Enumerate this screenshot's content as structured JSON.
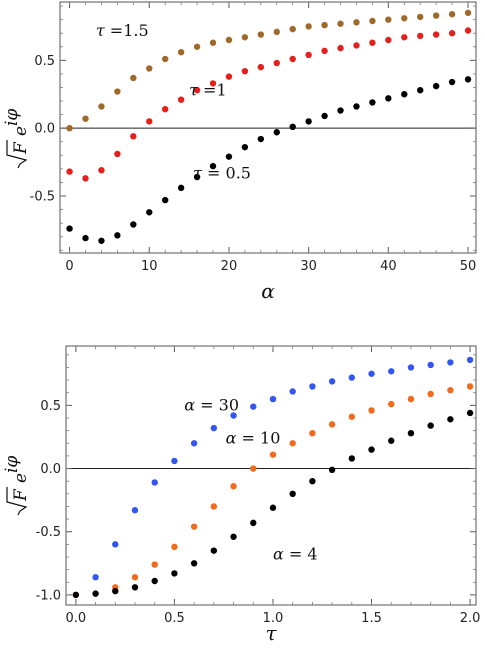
{
  "chart_data": [
    {
      "type": "scatter",
      "title": "",
      "xlabel": "α",
      "ylabel_main": "F",
      "ylabel_exp": "eiφ",
      "xlim": [
        -1.2,
        51
      ],
      "ylim": [
        -0.92,
        0.93
      ],
      "xticks": [
        0,
        10,
        20,
        30,
        40,
        50
      ],
      "xtick_labels": [
        "0",
        "10",
        "20",
        "30",
        "40",
        "50"
      ],
      "yticks": [
        -0.5,
        0.0,
        0.5
      ],
      "ytick_labels": [
        "-0.5",
        "0.0",
        "0.5"
      ],
      "zero_line": true,
      "grid": false,
      "series": [
        {
          "name": "τ = 1.5",
          "color": "#a0692a",
          "x": [
            0,
            2,
            4,
            6,
            8,
            10,
            12,
            14,
            16,
            18,
            20,
            22,
            24,
            26,
            28,
            30,
            32,
            34,
            36,
            38,
            40,
            42,
            44,
            46,
            48,
            50
          ],
          "y": [
            0.0,
            0.07,
            0.16,
            0.27,
            0.37,
            0.44,
            0.51,
            0.56,
            0.6,
            0.63,
            0.65,
            0.67,
            0.69,
            0.71,
            0.73,
            0.75,
            0.76,
            0.77,
            0.78,
            0.79,
            0.8,
            0.81,
            0.82,
            0.83,
            0.84,
            0.85
          ]
        },
        {
          "name": "τ = 1",
          "color": "#e3201b",
          "x": [
            0,
            2,
            4,
            6,
            8,
            10,
            12,
            14,
            16,
            18,
            20,
            22,
            24,
            26,
            28,
            30,
            32,
            34,
            36,
            38,
            40,
            42,
            44,
            46,
            48,
            50
          ],
          "y": [
            -0.32,
            -0.37,
            -0.31,
            -0.19,
            -0.06,
            0.05,
            0.14,
            0.21,
            0.28,
            0.33,
            0.38,
            0.42,
            0.45,
            0.48,
            0.51,
            0.54,
            0.57,
            0.59,
            0.61,
            0.63,
            0.65,
            0.67,
            0.68,
            0.69,
            0.7,
            0.72
          ]
        },
        {
          "name": "τ = 0.5",
          "color": "#000000",
          "x": [
            0,
            2,
            4,
            6,
            8,
            10,
            12,
            14,
            16,
            18,
            20,
            22,
            24,
            26,
            28,
            30,
            32,
            34,
            36,
            38,
            40,
            42,
            44,
            46,
            48,
            50
          ],
          "y": [
            -0.74,
            -0.81,
            -0.83,
            -0.79,
            -0.71,
            -0.62,
            -0.53,
            -0.44,
            -0.36,
            -0.28,
            -0.21,
            -0.14,
            -0.08,
            -0.03,
            0.01,
            0.05,
            0.09,
            0.13,
            0.16,
            0.19,
            0.22,
            0.25,
            0.28,
            0.31,
            0.34,
            0.36
          ]
        }
      ],
      "annotations": [
        {
          "greek": "τ",
          "rest": " =1.5",
          "x": 3.3,
          "y": 0.68
        },
        {
          "greek": "τ",
          "rest": " =1",
          "x": 15.0,
          "y": 0.24
        },
        {
          "greek": "τ",
          "rest": " = 0.5",
          "x": 15.5,
          "y": -0.37
        }
      ]
    },
    {
      "type": "scatter",
      "title": "",
      "xlabel": "τ",
      "ylabel_main": "F",
      "ylabel_exp": "eiφ",
      "xlim": [
        -0.05,
        2.03
      ],
      "ylim": [
        -1.08,
        0.97
      ],
      "xticks": [
        0.0,
        0.5,
        1.0,
        1.5,
        2.0
      ],
      "xtick_labels": [
        "0.0",
        "0.5",
        "1.0",
        "1.5",
        "2.0"
      ],
      "yticks": [
        -1.0,
        -0.5,
        0.0,
        0.5
      ],
      "ytick_labels": [
        "-1.0",
        "-0.5",
        "0.0",
        "0.5"
      ],
      "zero_line": true,
      "grid": false,
      "series": [
        {
          "name": "α = 30",
          "color": "#3355f0",
          "x": [
            0.0,
            0.1,
            0.2,
            0.3,
            0.4,
            0.5,
            0.6,
            0.7,
            0.8,
            0.9,
            1.0,
            1.1,
            1.2,
            1.3,
            1.4,
            1.5,
            1.6,
            1.7,
            1.8,
            1.9,
            2.0
          ],
          "y": [
            -1.0,
            -0.86,
            -0.6,
            -0.33,
            -0.11,
            0.06,
            0.2,
            0.32,
            0.42,
            0.49,
            0.55,
            0.61,
            0.65,
            0.69,
            0.72,
            0.75,
            0.77,
            0.8,
            0.82,
            0.84,
            0.86
          ]
        },
        {
          "name": "α = 10",
          "color": "#f26a1b",
          "x": [
            0.0,
            0.1,
            0.2,
            0.3,
            0.4,
            0.5,
            0.6,
            0.7,
            0.8,
            0.9,
            1.0,
            1.1,
            1.2,
            1.3,
            1.4,
            1.5,
            1.6,
            1.7,
            1.8,
            1.9,
            2.0
          ],
          "y": [
            -1.0,
            -0.99,
            -0.94,
            -0.86,
            -0.76,
            -0.62,
            -0.46,
            -0.3,
            -0.14,
            0.0,
            0.11,
            0.2,
            0.28,
            0.35,
            0.41,
            0.46,
            0.51,
            0.55,
            0.59,
            0.62,
            0.65
          ]
        },
        {
          "name": "α = 4",
          "color": "#000000",
          "x": [
            0.0,
            0.1,
            0.2,
            0.3,
            0.4,
            0.5,
            0.6,
            0.7,
            0.8,
            0.9,
            1.0,
            1.1,
            1.2,
            1.3,
            1.4,
            1.5,
            1.6,
            1.7,
            1.8,
            1.9,
            2.0
          ],
          "y": [
            -1.0,
            -0.99,
            -0.97,
            -0.94,
            -0.89,
            -0.83,
            -0.75,
            -0.65,
            -0.54,
            -0.43,
            -0.31,
            -0.2,
            -0.1,
            -0.01,
            0.08,
            0.15,
            0.22,
            0.28,
            0.34,
            0.39,
            0.44
          ]
        }
      ],
      "annotations": [
        {
          "greek": "α",
          "rest": " = 30",
          "x": 0.55,
          "y": 0.46
        },
        {
          "greek": "α",
          "rest": " = 10",
          "x": 0.76,
          "y": 0.2
        },
        {
          "greek": "α",
          "rest": " = 4",
          "x": 1.0,
          "y": -0.72
        }
      ]
    }
  ]
}
